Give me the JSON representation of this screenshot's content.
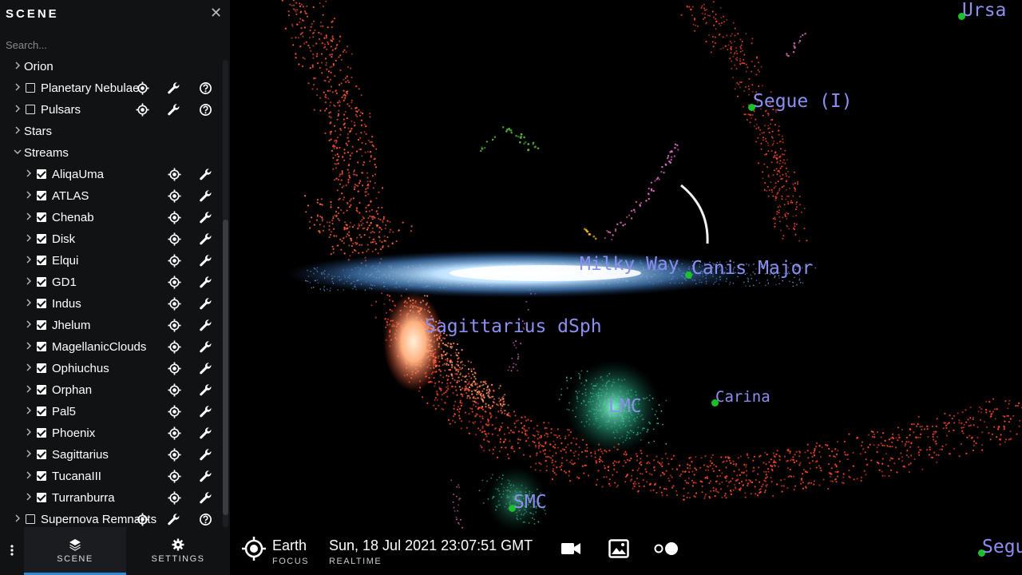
{
  "sidebar": {
    "title": "SCENE",
    "search_placeholder": "Search...",
    "items": [
      {
        "label": "Orion",
        "level": 0,
        "checkbox": false
      },
      {
        "label": "Planetary Nebulae",
        "level": 0,
        "checkbox": "unchecked",
        "icons": [
          "focus-icon",
          "wrench-icon",
          "help-icon"
        ]
      },
      {
        "label": "Pulsars",
        "level": 0,
        "checkbox": "unchecked",
        "icons": [
          "focus-icon",
          "wrench-icon",
          "help-icon"
        ]
      },
      {
        "label": "Stars",
        "level": 0,
        "checkbox": false
      },
      {
        "label": "Streams",
        "level": 0,
        "checkbox": false,
        "expanded": true
      },
      {
        "label": "AliqaUma",
        "level": 1,
        "checkbox": "checked",
        "icons": [
          "focus-icon",
          "wrench-icon"
        ]
      },
      {
        "label": "ATLAS",
        "level": 1,
        "checkbox": "checked",
        "icons": [
          "focus-icon",
          "wrench-icon"
        ]
      },
      {
        "label": "Chenab",
        "level": 1,
        "checkbox": "checked",
        "icons": [
          "focus-icon",
          "wrench-icon"
        ]
      },
      {
        "label": "Disk",
        "level": 1,
        "checkbox": "checked",
        "icons": [
          "focus-icon",
          "wrench-icon"
        ]
      },
      {
        "label": "Elqui",
        "level": 1,
        "checkbox": "checked",
        "icons": [
          "focus-icon",
          "wrench-icon"
        ]
      },
      {
        "label": "GD1",
        "level": 1,
        "checkbox": "checked",
        "icons": [
          "focus-icon",
          "wrench-icon"
        ]
      },
      {
        "label": "Indus",
        "level": 1,
        "checkbox": "checked",
        "icons": [
          "focus-icon",
          "wrench-icon"
        ]
      },
      {
        "label": "Jhelum",
        "level": 1,
        "checkbox": "checked",
        "icons": [
          "focus-icon",
          "wrench-icon"
        ]
      },
      {
        "label": "MagellanicClouds",
        "level": 1,
        "checkbox": "checked",
        "icons": [
          "focus-icon",
          "wrench-icon"
        ]
      },
      {
        "label": "Ophiuchus",
        "level": 1,
        "checkbox": "checked",
        "icons": [
          "focus-icon",
          "wrench-icon"
        ]
      },
      {
        "label": "Orphan",
        "level": 1,
        "checkbox": "checked",
        "icons": [
          "focus-icon",
          "wrench-icon"
        ]
      },
      {
        "label": "Pal5",
        "level": 1,
        "checkbox": "checked",
        "icons": [
          "focus-icon",
          "wrench-icon"
        ]
      },
      {
        "label": "Phoenix",
        "level": 1,
        "checkbox": "checked",
        "icons": [
          "focus-icon",
          "wrench-icon"
        ]
      },
      {
        "label": "Sagittarius",
        "level": 1,
        "checkbox": "checked",
        "icons": [
          "focus-icon",
          "wrench-icon"
        ]
      },
      {
        "label": "TucanaIII",
        "level": 1,
        "checkbox": "checked",
        "icons": [
          "focus-icon",
          "wrench-icon"
        ]
      },
      {
        "label": "Turranburra",
        "level": 1,
        "checkbox": "checked",
        "icons": [
          "focus-icon",
          "wrench-icon"
        ]
      },
      {
        "label": "Supernova Remnants",
        "level": 0,
        "checkbox": "unchecked",
        "icons": [
          "focus-icon",
          "wrench-icon",
          "help-icon"
        ]
      }
    ],
    "tabs": [
      {
        "label": "SCENE",
        "icon": "layers-icon",
        "active": true
      },
      {
        "label": "SETTINGS",
        "icon": "gear-icon",
        "active": false
      }
    ]
  },
  "viewport": {
    "labels": [
      "Ursa",
      "Segue (I)",
      "Milky Way",
      "Canis Major",
      "Sagittarius dSph",
      "Carina",
      "LMC",
      "SMC",
      "Segue"
    ]
  },
  "bottombar": {
    "focus_name": "Earth",
    "focus_caption": "FOCUS",
    "datetime": "Sun, 18 Jul 2021 23:07:51 GMT",
    "time_caption": "REALTIME"
  }
}
